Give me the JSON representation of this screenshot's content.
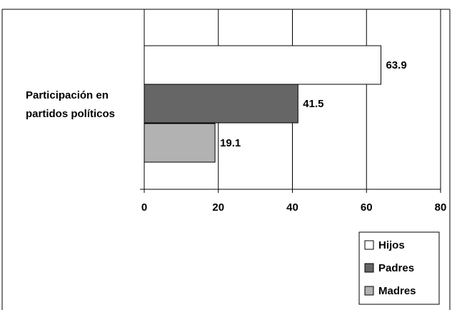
{
  "chart_data": {
    "type": "bar",
    "orientation": "horizontal",
    "categories": [
      "Participación en partidos políticos"
    ],
    "series": [
      {
        "name": "Hijos",
        "values": [
          63.9
        ],
        "color": "#ffffff"
      },
      {
        "name": "Padres",
        "values": [
          41.5
        ],
        "color": "#666666"
      },
      {
        "name": "Madres",
        "values": [
          19.1
        ],
        "color": "#b2b2b2"
      }
    ],
    "data_labels": [
      "63.9",
      "41.5",
      "19.1"
    ],
    "xlim": [
      0,
      80
    ],
    "xticks": [
      0,
      20,
      40,
      60,
      80
    ],
    "xtick_labels": [
      "0",
      "20",
      "40",
      "60",
      "80"
    ],
    "grid": "vertical",
    "legend_position": "bottom-right"
  }
}
